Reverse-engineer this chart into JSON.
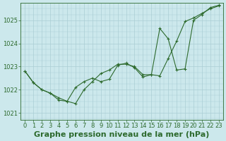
{
  "background_color": "#cce8ec",
  "grid_color": "#aacdd4",
  "line_color": "#2d6a2d",
  "marker_color": "#2d6a2d",
  "title": "Graphe pression niveau de la mer (hPa)",
  "xlim": [
    -0.5,
    23.5
  ],
  "ylim": [
    1020.7,
    1025.75
  ],
  "yticks": [
    1021,
    1022,
    1023,
    1024,
    1025
  ],
  "xticks": [
    0,
    1,
    2,
    3,
    4,
    5,
    6,
    7,
    8,
    9,
    10,
    11,
    12,
    13,
    14,
    15,
    16,
    17,
    18,
    19,
    20,
    21,
    22,
    23
  ],
  "series1_x": [
    0,
    1,
    2,
    3,
    4,
    5,
    6,
    7,
    8,
    9,
    10,
    11,
    12,
    13,
    14,
    15,
    16,
    17,
    18,
    19,
    20,
    21,
    22,
    23
  ],
  "series1_y": [
    1022.8,
    1022.3,
    1022.0,
    1021.85,
    1021.55,
    1021.5,
    1021.4,
    1022.0,
    1022.35,
    1022.7,
    1022.85,
    1023.1,
    1023.1,
    1023.0,
    1022.65,
    1022.65,
    1022.6,
    1023.35,
    1024.1,
    1024.95,
    1025.1,
    1025.3,
    1025.5,
    1025.62
  ],
  "series2_x": [
    0,
    1,
    2,
    3,
    4,
    5,
    6,
    7,
    8,
    9,
    10,
    11,
    12,
    13,
    14,
    15,
    16,
    17,
    18,
    19,
    20,
    21,
    22,
    23
  ],
  "series2_y": [
    1022.8,
    1022.3,
    1022.0,
    1021.85,
    1021.65,
    1021.5,
    1022.1,
    1022.35,
    1022.5,
    1022.35,
    1022.45,
    1023.05,
    1023.15,
    1022.95,
    1022.55,
    1022.65,
    1024.65,
    1024.2,
    1022.85,
    1022.9,
    1025.0,
    1025.25,
    1025.55,
    1025.65
  ],
  "title_fontsize": 8,
  "tick_fontsize": 6
}
